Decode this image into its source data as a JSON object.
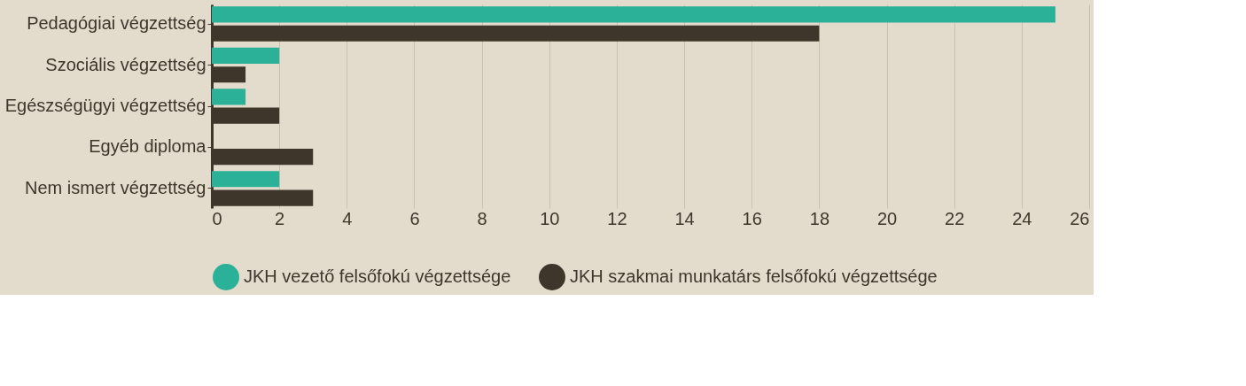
{
  "chart_data": {
    "type": "bar",
    "orientation": "horizontal",
    "categories": [
      "Pedagógiai végzettség",
      "Szociális végzettség",
      "Egészségügyi végzettség",
      "Egyéb diploma",
      "Nem ismert végzettség"
    ],
    "series": [
      {
        "name": "JKH vezető felsőfokú végzettsége",
        "color": "#2bb198",
        "values": [
          25,
          2,
          1,
          0,
          2
        ]
      },
      {
        "name": "JKH szakmai munkatárs felsőfokú végzettsége",
        "color": "#3e362a",
        "values": [
          18,
          1,
          2,
          3,
          3
        ]
      }
    ],
    "xlim": [
      0,
      26
    ],
    "xticks": [
      0,
      2,
      4,
      6,
      8,
      10,
      12,
      14,
      16,
      18,
      20,
      22,
      24,
      26
    ],
    "grid": "x",
    "legend": "bottom",
    "marker": "circle"
  }
}
